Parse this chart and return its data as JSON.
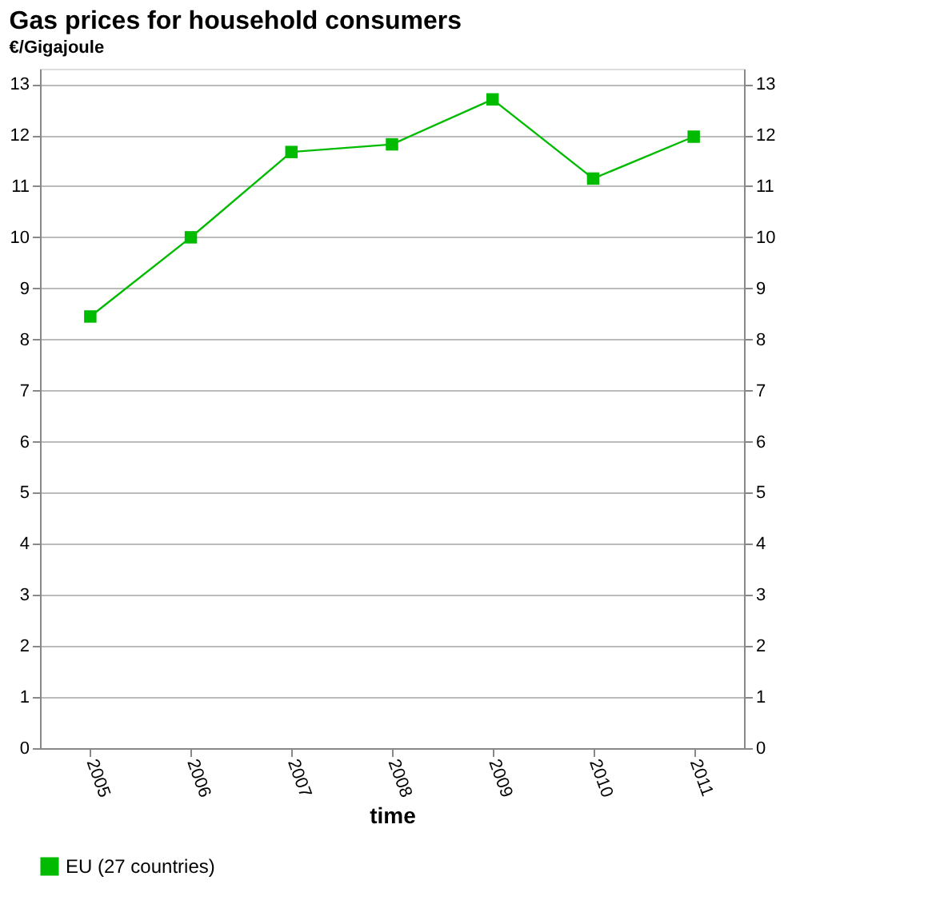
{
  "chart_data": {
    "type": "line",
    "title": "Gas prices for household consumers",
    "subtitle": "€/Gigajoule",
    "xlabel": "time",
    "categories": [
      "2005",
      "2006",
      "2007",
      "2008",
      "2009",
      "2010",
      "2011"
    ],
    "series": [
      {
        "name": "EU (27 countries)",
        "color": "#00bb00",
        "values": [
          8.45,
          10.0,
          11.67,
          11.82,
          12.7,
          11.15,
          11.97
        ]
      }
    ],
    "ylim": [
      0,
      13.3
    ],
    "yticks": [
      0,
      1,
      2,
      3,
      4,
      5,
      6,
      7,
      8,
      9,
      10,
      11,
      12,
      13
    ],
    "y2lim": [
      0,
      13.3
    ],
    "y2ticks": [
      0,
      1,
      2,
      3,
      4,
      5,
      6,
      7,
      8,
      9,
      10,
      11,
      12,
      13
    ],
    "grid": "y",
    "legend": "bottom",
    "marker": "square",
    "line_style": "solid"
  }
}
